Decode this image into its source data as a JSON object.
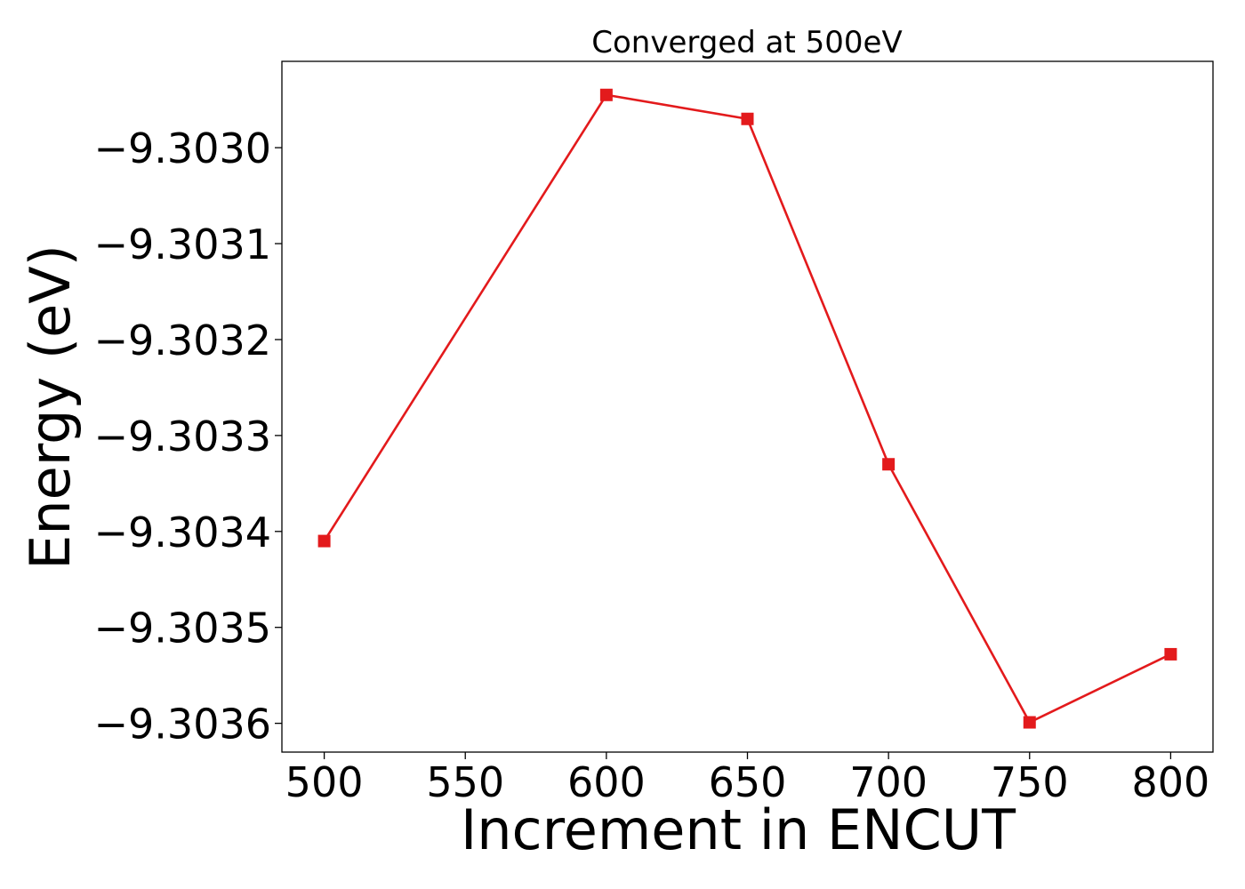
{
  "chart_data": {
    "type": "line",
    "title": "Converged at 500eV",
    "xlabel": "Increment in ENCUT",
    "ylabel": "Energy (eV)",
    "x": [
      500,
      600,
      650,
      700,
      750,
      800
    ],
    "series": [
      {
        "values": [
          -9.30341,
          -9.302945,
          -9.30297,
          -9.30333,
          -9.303599,
          -9.303528
        ]
      }
    ],
    "xlim": [
      485,
      815
    ],
    "ylim": [
      -9.30363,
      -9.30291
    ],
    "xticks": [
      500,
      550,
      600,
      650,
      700,
      750,
      800
    ],
    "xtick_labels": [
      "500",
      "550",
      "600",
      "650",
      "700",
      "750",
      "800"
    ],
    "yticks": [
      -9.303,
      -9.3031,
      -9.3032,
      -9.3033,
      -9.3034,
      -9.3035,
      -9.3036
    ],
    "ytick_labels": [
      "−9.3030",
      "−9.3031",
      "−9.3032",
      "−9.3033",
      "−9.3034",
      "−9.3035",
      "−9.3036"
    ],
    "grid": false,
    "legend": "none",
    "line_color": "#e31a1c",
    "marker": "square"
  }
}
